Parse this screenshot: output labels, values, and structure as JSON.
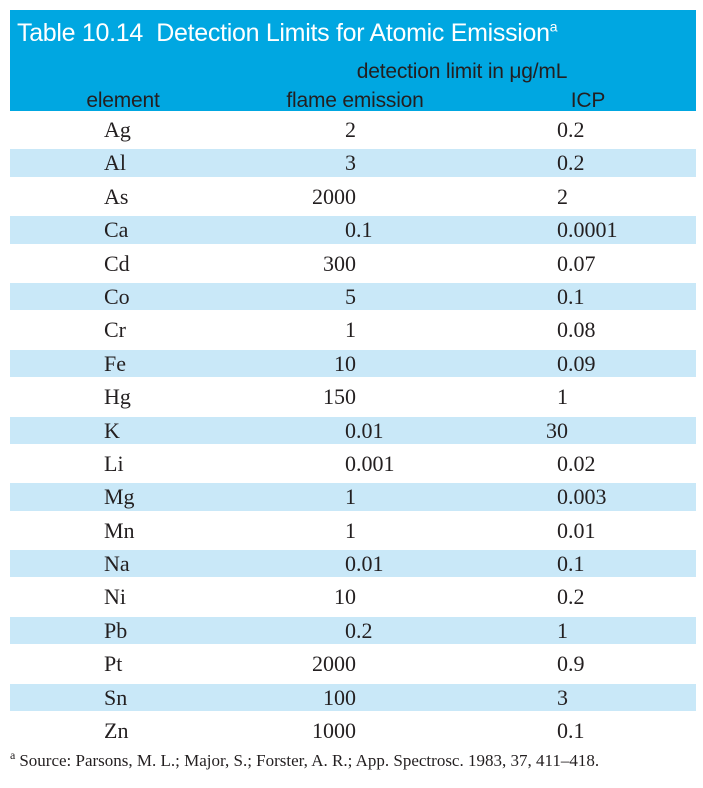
{
  "header": {
    "title": "Table 10.14  Detection Limits for Atomic Emission",
    "title_superscript": "a",
    "span_header": "detection limit in μg/mL",
    "columns": [
      "element",
      "flame emission",
      "ICP"
    ]
  },
  "rows": [
    {
      "element": "Ag",
      "flame_emission": "2",
      "icp": "0.2"
    },
    {
      "element": "Al",
      "flame_emission": "3",
      "icp": "0.2"
    },
    {
      "element": "As",
      "flame_emission": "2000",
      "icp": "2"
    },
    {
      "element": "Ca",
      "flame_emission": "0.1",
      "icp": "0.0001"
    },
    {
      "element": "Cd",
      "flame_emission": "300",
      "icp": "0.07"
    },
    {
      "element": "Co",
      "flame_emission": "5",
      "icp": "0.1"
    },
    {
      "element": "Cr",
      "flame_emission": "1",
      "icp": "0.08"
    },
    {
      "element": "Fe",
      "flame_emission": "10",
      "icp": "0.09"
    },
    {
      "element": "Hg",
      "flame_emission": "150",
      "icp": "1"
    },
    {
      "element": "K",
      "flame_emission": "0.01",
      "icp": "30"
    },
    {
      "element": "Li",
      "flame_emission": "0.001",
      "icp": "0.02"
    },
    {
      "element": "Mg",
      "flame_emission": "1",
      "icp": "0.003"
    },
    {
      "element": "Mn",
      "flame_emission": "1",
      "icp": "0.01"
    },
    {
      "element": "Na",
      "flame_emission": "0.01",
      "icp": "0.1"
    },
    {
      "element": "Ni",
      "flame_emission": "10",
      "icp": "0.2"
    },
    {
      "element": "Pb",
      "flame_emission": "0.2",
      "icp": "1"
    },
    {
      "element": "Pt",
      "flame_emission": "2000",
      "icp": "0.9"
    },
    {
      "element": "Sn",
      "flame_emission": "100",
      "icp": "3"
    },
    {
      "element": "Zn",
      "flame_emission": "1000",
      "icp": "0.1"
    }
  ],
  "footnote": {
    "marker": "a",
    "text": "Source: Parsons, M. L.; Major, S.; Forster, A. R.; App. Spectrosc. 1983, 37, 411–418."
  },
  "colors": {
    "header_blue": "#00a7e1",
    "row_blue": "#c9e8f8",
    "ink": "#231f20"
  }
}
